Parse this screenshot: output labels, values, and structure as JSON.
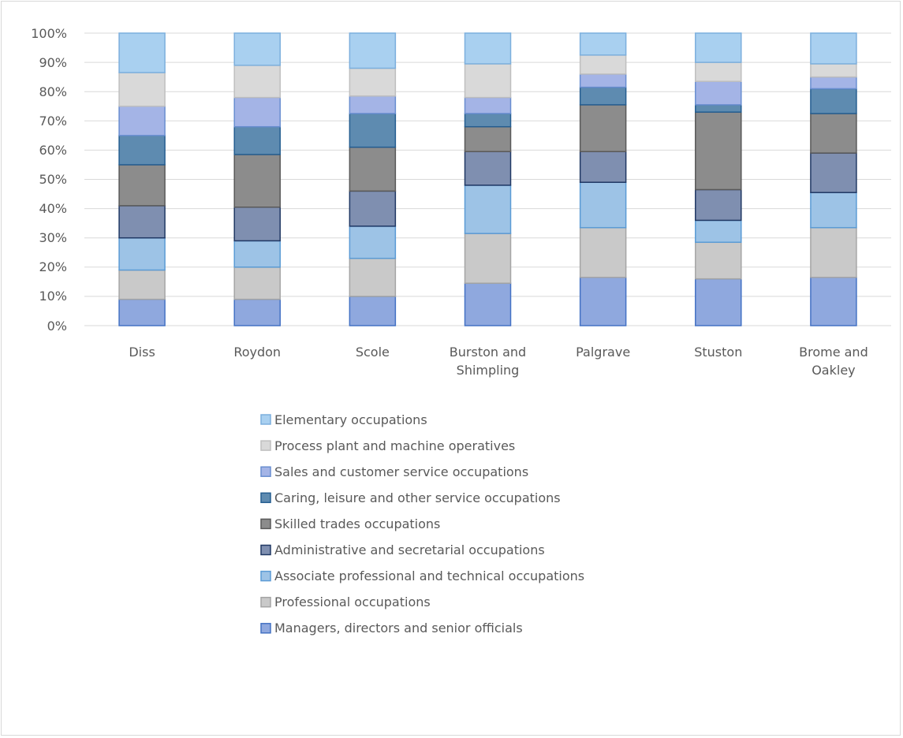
{
  "chart_data": {
    "type": "stacked_bar",
    "categories": [
      "Diss",
      "Roydon",
      "Scole",
      "Burston and Shimpling",
      "Palgrave",
      "Stuston",
      "Brome and Oakley"
    ],
    "series": [
      {
        "name": "Managers, directors and senior officials",
        "color": "#8fa8de",
        "edge": "#4472c4",
        "values": [
          9,
          9,
          10,
          14.5,
          16.5,
          16,
          16.5
        ]
      },
      {
        "name": "Professional occupations",
        "color": "#c9c9c9",
        "edge": "#a5a5a5",
        "values": [
          10,
          11,
          13,
          17,
          17,
          12.5,
          17
        ]
      },
      {
        "name": "Associate professional and technical occupations",
        "color": "#9dc3e6",
        "edge": "#5b9bd5",
        "values": [
          11,
          9,
          11,
          16.5,
          15.5,
          7.5,
          12
        ]
      },
      {
        "name": "Administrative and secretarial occupations",
        "color": "#7f8fb0",
        "edge": "#203864",
        "values": [
          11,
          11.5,
          12,
          11.5,
          10.5,
          10.5,
          13.5
        ]
      },
      {
        "name": "Skilled trades occupations",
        "color": "#8c8c8c",
        "edge": "#595959",
        "values": [
          14,
          18,
          15,
          8.5,
          16,
          26.5,
          13.5
        ]
      },
      {
        "name": "Caring, leisure and other service occupations",
        "color": "#5e8bb0",
        "edge": "#255e91",
        "values": [
          10,
          9.5,
          11.5,
          4.5,
          6,
          2.5,
          8.5
        ]
      },
      {
        "name": "Sales and customer service occupations",
        "color": "#a4b4e6",
        "edge": "#698ed0",
        "values": [
          10,
          10,
          6,
          5.5,
          4.5,
          8,
          4
        ]
      },
      {
        "name": "Process plant and machine operatives",
        "color": "#d9d9d9",
        "edge": "#bfbfbf",
        "values": [
          11.5,
          11,
          9.5,
          11.5,
          6.5,
          6.5,
          4.5
        ]
      },
      {
        "name": "Elementary occupations",
        "color": "#a9d0f0",
        "edge": "#7cafdd",
        "values": [
          13.5,
          11,
          12,
          10.5,
          7.5,
          10,
          10.5
        ]
      }
    ],
    "ylim": [
      0,
      100
    ],
    "yticks": [
      {
        "value": 0,
        "label": "0%"
      },
      {
        "value": 10,
        "label": "10%"
      },
      {
        "value": 20,
        "label": "20%"
      },
      {
        "value": 30,
        "label": "30%"
      },
      {
        "value": 40,
        "label": "40%"
      },
      {
        "value": 50,
        "label": "50%"
      },
      {
        "value": 60,
        "label": "60%"
      },
      {
        "value": 70,
        "label": "70%"
      },
      {
        "value": 80,
        "label": "80%"
      },
      {
        "value": 90,
        "label": "90%"
      },
      {
        "value": 100,
        "label": "100%"
      }
    ],
    "grid": true,
    "legend": "bottom"
  }
}
